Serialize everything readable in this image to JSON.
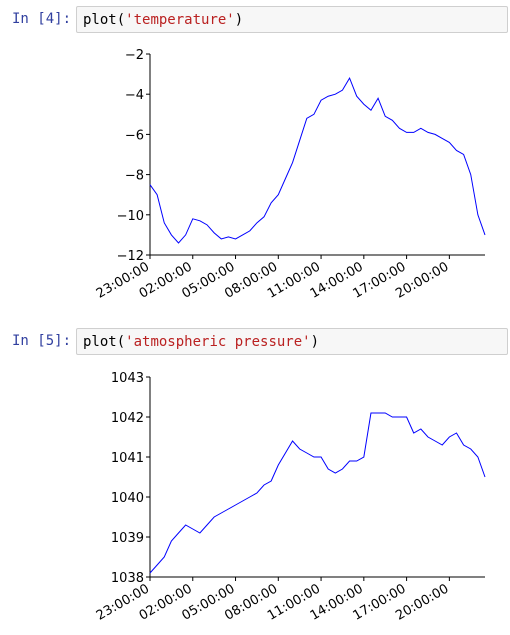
{
  "cells": [
    {
      "prompt": "In [4]:",
      "code": [
        "plot(",
        "'temperature'",
        ")"
      ]
    },
    {
      "prompt": "In [5]:",
      "code": [
        "plot(",
        "'atmospheric pressure'",
        ")"
      ]
    }
  ],
  "chart_data": [
    {
      "type": "line",
      "color": "#0000ff",
      "categories": [
        "23:00:00",
        null,
        null,
        null,
        null,
        null,
        "02:00:00",
        null,
        null,
        null,
        null,
        null,
        "05:00:00",
        null,
        null,
        null,
        null,
        null,
        "08:00:00",
        null,
        null,
        null,
        null,
        null,
        "11:00:00",
        null,
        null,
        null,
        null,
        null,
        "14:00:00",
        null,
        null,
        null,
        null,
        null,
        "17:00:00",
        null,
        null,
        null,
        null,
        null,
        "20:00:00",
        null,
        null,
        null,
        null,
        null
      ],
      "values": [
        -8.5,
        -9.0,
        -10.4,
        -11.0,
        -11.4,
        -11.0,
        -10.2,
        -10.3,
        -10.5,
        -10.9,
        -11.2,
        -11.1,
        -11.2,
        -11.0,
        -10.8,
        -10.4,
        -10.1,
        -9.4,
        -9.0,
        -8.2,
        -7.4,
        -6.3,
        -5.2,
        -5.0,
        -4.3,
        -4.1,
        -4.0,
        -3.8,
        -3.2,
        -4.1,
        -4.5,
        -4.8,
        -4.2,
        -5.1,
        -5.3,
        -5.7,
        -5.9,
        -5.9,
        -5.7,
        -5.9,
        -6.0,
        -6.2,
        -6.4,
        -6.8,
        -7.0,
        -8.0,
        -10.0,
        -11.0
      ],
      "ylim": [
        -12,
        -2
      ],
      "yticks": [
        {
          "value": -12,
          "label": "−12"
        },
        {
          "value": -10,
          "label": "−10"
        },
        {
          "value": -8,
          "label": "−8"
        },
        {
          "value": -6,
          "label": "−6"
        },
        {
          "value": -4,
          "label": "−4"
        },
        {
          "value": -2,
          "label": "−2"
        }
      ]
    },
    {
      "type": "line",
      "color": "#0000ff",
      "categories": [
        "23:00:00",
        null,
        null,
        null,
        null,
        null,
        "02:00:00",
        null,
        null,
        null,
        null,
        null,
        "05:00:00",
        null,
        null,
        null,
        null,
        null,
        "08:00:00",
        null,
        null,
        null,
        null,
        null,
        "11:00:00",
        null,
        null,
        null,
        null,
        null,
        "14:00:00",
        null,
        null,
        null,
        null,
        null,
        "17:00:00",
        null,
        null,
        null,
        null,
        null,
        "20:00:00",
        null,
        null,
        null,
        null,
        null
      ],
      "values": [
        1038.1,
        1038.3,
        1038.5,
        1038.9,
        1039.1,
        1039.3,
        1039.2,
        1039.1,
        1039.3,
        1039.5,
        1039.6,
        1039.7,
        1039.8,
        1039.9,
        1040.0,
        1040.1,
        1040.3,
        1040.4,
        1040.8,
        1041.1,
        1041.4,
        1041.2,
        1041.1,
        1041.0,
        1041.0,
        1040.7,
        1040.6,
        1040.7,
        1040.9,
        1040.9,
        1041.0,
        1042.1,
        1042.1,
        1042.1,
        1042.0,
        1042.0,
        1042.0,
        1041.6,
        1041.7,
        1041.5,
        1041.4,
        1041.3,
        1041.5,
        1041.6,
        1041.3,
        1041.2,
        1041.0,
        1040.5
      ],
      "ylim": [
        1038,
        1043
      ],
      "yticks": [
        1038,
        1039,
        1040,
        1041,
        1042,
        1043
      ]
    }
  ]
}
